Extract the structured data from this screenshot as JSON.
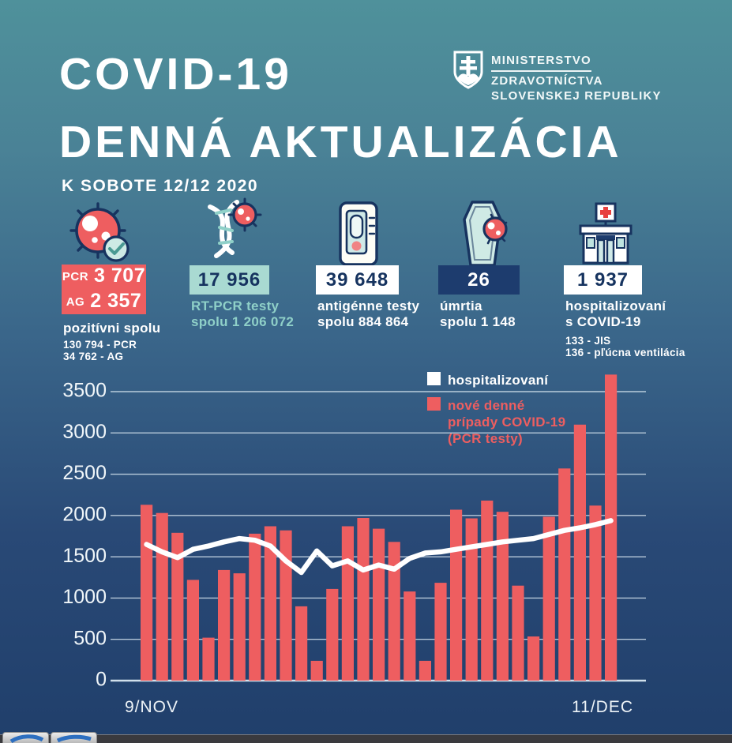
{
  "header": {
    "title_line1": "COVID-19",
    "title_line2": "DENNÁ AKTUALIZÁCIA",
    "date_label": "K SOBOTE 12/12 2020"
  },
  "ministry": {
    "line1": "MINISTERSTVO",
    "line2": "ZDRAVOTNÍCTVA",
    "line3": "SLOVENSKEJ REPUBLIKY"
  },
  "stats": {
    "positives": {
      "rows": [
        {
          "label": "PCR",
          "value": "3 707"
        },
        {
          "label": "AG",
          "value": "2 357"
        }
      ],
      "caption": "pozitívni spolu",
      "detail1": "130 794 - PCR",
      "detail2": "34 762 - AG"
    },
    "pcr_tests": {
      "value": "17 956",
      "caption": "RT-PCR testy\nspolu 1 206 072"
    },
    "ag_tests": {
      "value": "39 648",
      "caption": "antigénne testy\nspolu 884 864"
    },
    "deaths": {
      "value": "26",
      "caption": "úmrtia\nspolu 1 148"
    },
    "hospitalized": {
      "value": "1 937",
      "caption": "hospitalizovaní\ns COVID-19",
      "detail1": "133 - JIS",
      "detail2": "136 - pľúcna ventilácia"
    }
  },
  "chart_data": {
    "type": "bar+line",
    "x_axis": {
      "start_label": "9/NOV",
      "end_label": "11/DEC",
      "n_points": 31
    },
    "y_axis": {
      "ticks": [
        0,
        500,
        1000,
        1500,
        2000,
        2500,
        3000,
        3500
      ],
      "max": 3500
    },
    "legend": [
      {
        "label": "hospitalizovaní",
        "color": "#ffffff"
      },
      {
        "label": "nové denné\nprípady COVID-19\n(PCR testy)",
        "color": "#ee5e60"
      }
    ],
    "series": [
      {
        "name": "nové denné prípady COVID-19 (PCR testy)",
        "type": "bar",
        "color": "#ee5e60",
        "values": [
          2130,
          2030,
          1790,
          1220,
          520,
          1340,
          1300,
          1780,
          1870,
          1820,
          900,
          240,
          1110,
          1870,
          1970,
          1840,
          1680,
          1080,
          240,
          1185,
          2070,
          1965,
          2180,
          2045,
          1150,
          535,
          1985,
          2570,
          3100,
          2120,
          3707
        ]
      },
      {
        "name": "hospitalizovaní",
        "type": "line",
        "color": "#ffffff",
        "values": [
          1650,
          1560,
          1490,
          1590,
          1630,
          1680,
          1720,
          1700,
          1630,
          1450,
          1310,
          1570,
          1390,
          1450,
          1340,
          1400,
          1350,
          1480,
          1545,
          1560,
          1590,
          1620,
          1650,
          1680,
          1700,
          1720,
          1770,
          1820,
          1850,
          1890,
          1937
        ]
      }
    ]
  },
  "colors": {
    "background_top": "#4f919b",
    "background_bottom": "#203f6b",
    "accent_red": "#ee5e60",
    "navy": "#1d3c6e",
    "mint": "#a9dad2",
    "grid": "#dbe9f2"
  }
}
